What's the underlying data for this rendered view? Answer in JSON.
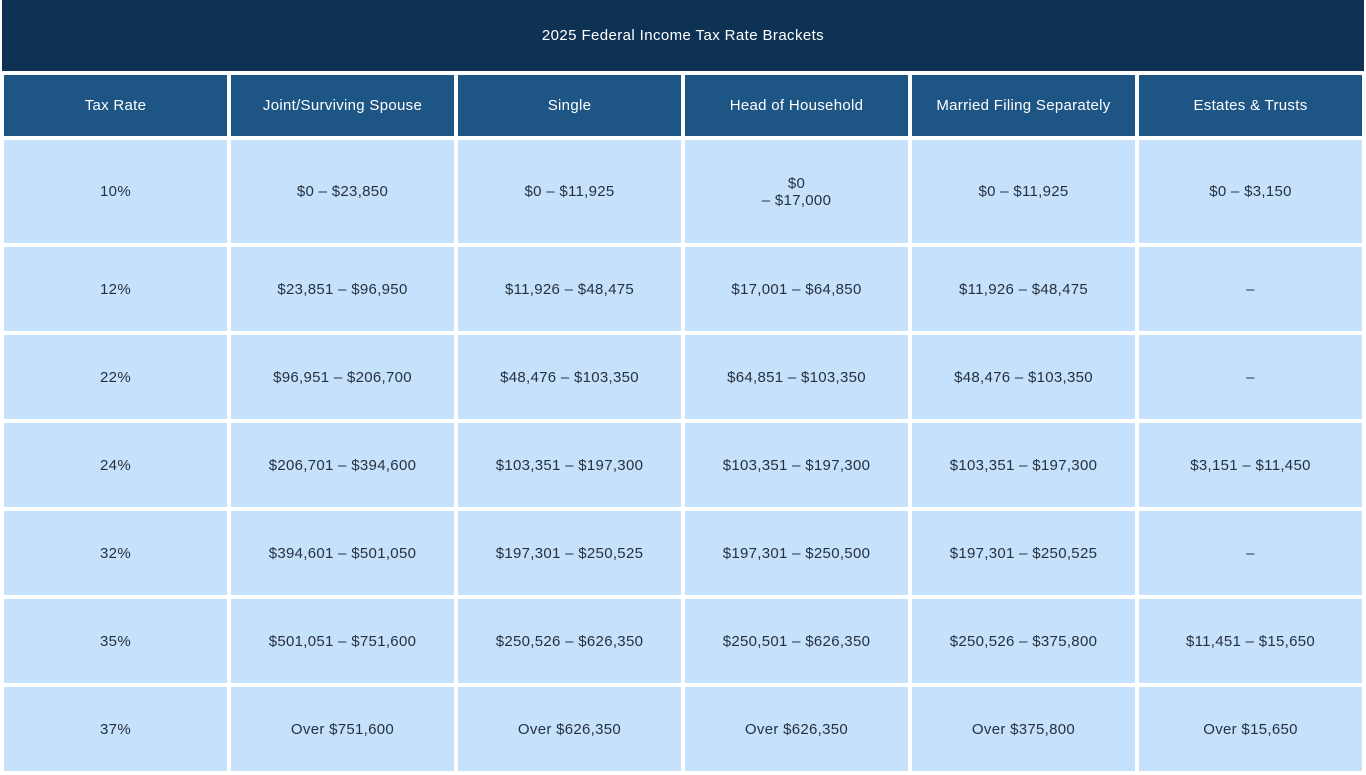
{
  "title": "2025 Federal Income Tax Rate Brackets",
  "colors": {
    "title_bar_bg": "#0d3254",
    "title_text": "#ffffff",
    "header_bg": "#1d5585",
    "header_text": "#ffffff",
    "cell_bg": "#c5e1fc",
    "cell_text": "#26313f",
    "gap": "#ffffff"
  },
  "chart_data": {
    "type": "table",
    "title": "2025 Federal Income Tax Rate Brackets",
    "columns": [
      "Tax Rate",
      "Joint/Surviving Spouse",
      "Single",
      "Head of Household",
      "Married Filing Separately",
      "Estates & Trusts"
    ],
    "rows": [
      [
        "10%",
        "$0 – $23,850",
        "$0 – $11,925",
        "$0\n– $17,000",
        "$0 – $11,925",
        "$0 – $3,150"
      ],
      [
        "12%",
        "$23,851 – $96,950",
        "$11,926 – $48,475",
        "$17,001 – $64,850",
        "$11,926 – $48,475",
        "–"
      ],
      [
        "22%",
        "$96,951 – $206,700",
        "$48,476 – $103,350",
        "$64,851 – $103,350",
        "$48,476 – $103,350",
        "–"
      ],
      [
        "24%",
        "$206,701 – $394,600",
        "$103,351 – $197,300",
        "$103,351 – $197,300",
        "$103,351 – $197,300",
        "$3,151 – $11,450"
      ],
      [
        "32%",
        "$394,601 – $501,050",
        "$197,301 – $250,525",
        "$197,301 – $250,500",
        "$197,301 – $250,525",
        "–"
      ],
      [
        "35%",
        "$501,051 – $751,600",
        "$250,526 – $626,350",
        "$250,501 – $626,350",
        "$250,526 – $375,800",
        "$11,451 – $15,650"
      ],
      [
        "37%",
        "Over $751,600",
        "Over $626,350",
        "Over $626,350",
        "Over $375,800",
        "Over $15,650"
      ]
    ]
  }
}
